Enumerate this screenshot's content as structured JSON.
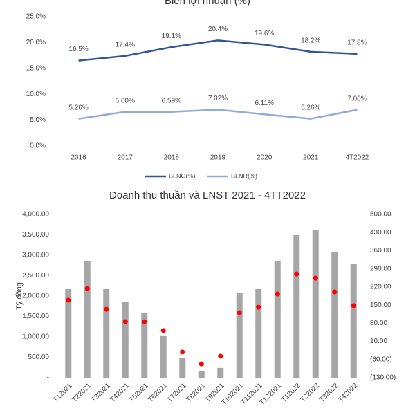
{
  "chart_data": [
    {
      "type": "line",
      "title": "Biên lợi nhuận (%)",
      "categories": [
        "2016",
        "2017",
        "2018",
        "2019",
        "2020",
        "2021",
        "4T2022"
      ],
      "series": [
        {
          "name": "BLNG(%)",
          "color": "#2f5597",
          "values": [
            16.5,
            17.4,
            19.1,
            20.4,
            19.6,
            18.2,
            17.8
          ],
          "value_labels": [
            "16.5%",
            "17.4%",
            "19.1%",
            "20.4%",
            "19.6%",
            "18.2%",
            "17,8%"
          ]
        },
        {
          "name": "BLNR(%)",
          "color": "#8faadc",
          "values": [
            5.26,
            6.6,
            6.59,
            7.02,
            6.11,
            5.26,
            7.0
          ],
          "value_labels": [
            "5.26%",
            "6.60%",
            "6.59%",
            "7.02%",
            "6.11%",
            "5.26%",
            "7.00%"
          ]
        }
      ],
      "ylim": [
        0,
        25
      ],
      "yticks": [
        {
          "value": 0,
          "label": "0.0%"
        },
        {
          "value": 5,
          "label": "5.0%"
        },
        {
          "value": 10,
          "label": "10.0%"
        },
        {
          "value": 15,
          "label": "15.0%"
        },
        {
          "value": 20,
          "label": "20.0%"
        },
        {
          "value": 25,
          "label": "25.0%"
        }
      ],
      "legend": "bottom"
    },
    {
      "type": "bar",
      "title": "Doanh thu thuần và LNST 2021 - 4TT2022",
      "y_label": "Tỷ đồng",
      "categories": [
        "T12021",
        "T22021",
        "T32021",
        "T42021",
        "T52021",
        "T62021",
        "T72021",
        "T82021",
        "T92021",
        "T102021",
        "T112021",
        "T122021",
        "T12022",
        "T22022",
        "T32022",
        "T42022"
      ],
      "series": [
        {
          "color": "#a6a6a6",
          "values": [
            2170,
            2850,
            2170,
            1850,
            1590,
            1020,
            490,
            170,
            240,
            2085,
            2170,
            2850,
            3490,
            3610,
            3085,
            2780
          ]
        },
        {
          "color": "#ff0000",
          "axis": "y2",
          "marker": "dot",
          "values": [
            169,
            214,
            134,
            86,
            86,
            52,
            -31,
            -77,
            -47,
            121,
            142,
            193,
            270,
            254,
            201,
            148
          ]
        }
      ],
      "ylim": [
        0,
        4000
      ],
      "yticks": [
        {
          "value": 0,
          "label": "-"
        },
        {
          "value": 500,
          "label": "500.00"
        },
        {
          "value": 1000,
          "label": "1,000.00"
        },
        {
          "value": 1500,
          "label": "1,500.00"
        },
        {
          "value": 2000,
          "label": "2,000.00"
        },
        {
          "value": 2500,
          "label": "2,500.00"
        },
        {
          "value": 3000,
          "label": "3,000.00"
        },
        {
          "value": 3500,
          "label": "3,500.00"
        },
        {
          "value": 4000,
          "label": "4,000.00"
        }
      ],
      "y2lim": [
        -130,
        500
      ],
      "y2ticks": [
        {
          "value": -130,
          "label": "(130.00)"
        },
        {
          "value": -60,
          "label": "(60.00)"
        },
        {
          "value": 10,
          "label": "10.00"
        },
        {
          "value": 80,
          "label": "80.00"
        },
        {
          "value": 150,
          "label": "150.00"
        },
        {
          "value": 220,
          "label": "220.00"
        },
        {
          "value": 290,
          "label": "290.00"
        },
        {
          "value": 360,
          "label": "360.00"
        },
        {
          "value": 430,
          "label": "430.00"
        },
        {
          "value": 500,
          "label": "500.00"
        }
      ]
    }
  ]
}
